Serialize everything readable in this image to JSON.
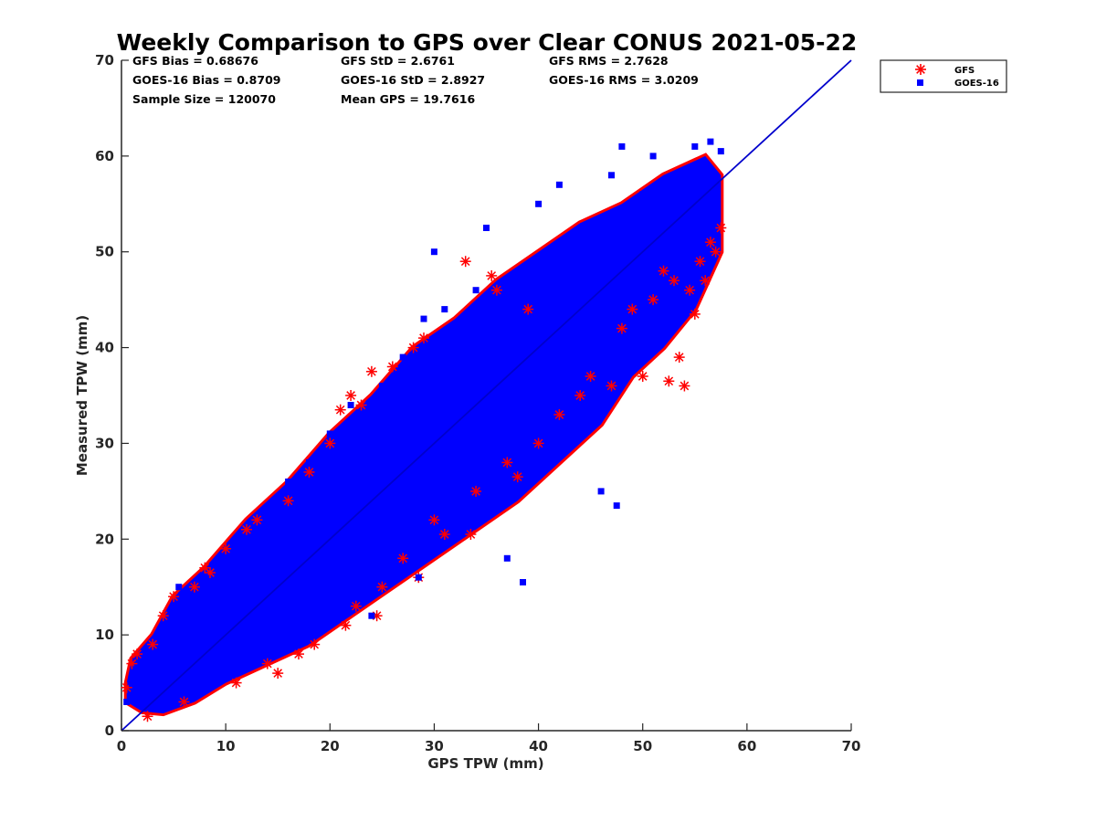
{
  "chart_data": {
    "type": "scatter",
    "title": "Weekly Comparison to GPS over Clear CONUS 2021-05-22",
    "xlabel": "GPS TPW (mm)",
    "ylabel": "Measured TPW (mm)",
    "xlim": [
      0,
      70
    ],
    "ylim": [
      0,
      70
    ],
    "xticks": [
      "0",
      "10",
      "20",
      "30",
      "40",
      "50",
      "60",
      "70"
    ],
    "yticks": [
      "0",
      "10",
      "20",
      "30",
      "40",
      "50",
      "60",
      "70"
    ],
    "legend_position": "outside top-right",
    "stats": {
      "gfs_bias": "GFS Bias = 0.68676",
      "goes_bias": "GOES-16 Bias = 0.8709",
      "sample_size": "Sample Size = 120070",
      "gfs_std": "GFS StD = 2.6761",
      "goes_std": "GOES-16 StD = 2.8927",
      "mean_gps": "Mean GPS = 19.7616",
      "gfs_rms": "GFS RMS = 2.7628",
      "goes_rms": "GOES-16 RMS = 3.0209"
    },
    "reference_line": {
      "name": "1:1 line",
      "x": [
        0,
        70
      ],
      "y": [
        0,
        70
      ],
      "color": "#0000cc"
    },
    "series": [
      {
        "name": "GFS",
        "marker": "asterisk",
        "color": "#ff0000",
        "points": [
          [
            0.5,
            4.5
          ],
          [
            1,
            7
          ],
          [
            1.5,
            8
          ],
          [
            2.5,
            1.5
          ],
          [
            3,
            9
          ],
          [
            4,
            12
          ],
          [
            5,
            14
          ],
          [
            6,
            3
          ],
          [
            7,
            15
          ],
          [
            8,
            17
          ],
          [
            8.5,
            16.5
          ],
          [
            10,
            19
          ],
          [
            11,
            5
          ],
          [
            12,
            21
          ],
          [
            13,
            22
          ],
          [
            14,
            7
          ],
          [
            15,
            6
          ],
          [
            16,
            24
          ],
          [
            17,
            8
          ],
          [
            18,
            27
          ],
          [
            18.5,
            9
          ],
          [
            20,
            30
          ],
          [
            21,
            33.5
          ],
          [
            21.5,
            11
          ],
          [
            22,
            35
          ],
          [
            22.5,
            13
          ],
          [
            23,
            34
          ],
          [
            24,
            37.5
          ],
          [
            24.5,
            12
          ],
          [
            25,
            15
          ],
          [
            26,
            38
          ],
          [
            27,
            18
          ],
          [
            28,
            40
          ],
          [
            28.5,
            16
          ],
          [
            29,
            41
          ],
          [
            30,
            22
          ],
          [
            31,
            20.5
          ],
          [
            33,
            49
          ],
          [
            33.5,
            20.5
          ],
          [
            34,
            25
          ],
          [
            35.5,
            47.5
          ],
          [
            36,
            46
          ],
          [
            37,
            28
          ],
          [
            38,
            26.5
          ],
          [
            39,
            44
          ],
          [
            40,
            30
          ],
          [
            42,
            33
          ],
          [
            44,
            35
          ],
          [
            45,
            37
          ],
          [
            47,
            36
          ],
          [
            48,
            42
          ],
          [
            49,
            44
          ],
          [
            50,
            37
          ],
          [
            51,
            45
          ],
          [
            52,
            48
          ],
          [
            52.5,
            36.5
          ],
          [
            53,
            47
          ],
          [
            53.5,
            39
          ],
          [
            54,
            36
          ],
          [
            54.5,
            46
          ],
          [
            55,
            43.5
          ],
          [
            55.5,
            49
          ],
          [
            56,
            47
          ],
          [
            56.5,
            51
          ],
          [
            57,
            50
          ],
          [
            57.5,
            52.5
          ]
        ]
      },
      {
        "name": "GOES-16",
        "marker": "square",
        "color": "#0000ff",
        "points": [
          [
            0.5,
            3
          ],
          [
            1,
            5
          ],
          [
            1.5,
            6.5
          ],
          [
            2,
            4
          ],
          [
            3,
            8
          ],
          [
            3.5,
            2.5
          ],
          [
            4,
            10
          ],
          [
            5,
            11
          ],
          [
            5.5,
            15
          ],
          [
            6,
            7
          ],
          [
            7,
            13
          ],
          [
            8,
            16
          ],
          [
            9,
            9
          ],
          [
            10,
            18
          ],
          [
            11,
            14
          ],
          [
            12,
            20
          ],
          [
            13,
            11
          ],
          [
            14,
            22
          ],
          [
            15,
            17
          ],
          [
            16,
            26
          ],
          [
            17,
            13
          ],
          [
            18,
            28
          ],
          [
            19,
            22
          ],
          [
            20,
            31
          ],
          [
            21,
            18
          ],
          [
            22,
            34
          ],
          [
            23,
            26
          ],
          [
            24,
            12
          ],
          [
            25,
            36
          ],
          [
            26,
            29
          ],
          [
            27,
            39
          ],
          [
            28,
            33
          ],
          [
            28.5,
            16
          ],
          [
            29,
            43
          ],
          [
            30,
            50
          ],
          [
            31,
            44
          ],
          [
            32,
            35
          ],
          [
            33,
            28
          ],
          [
            34,
            46
          ],
          [
            35,
            52.5
          ],
          [
            36,
            40
          ],
          [
            37,
            18
          ],
          [
            38,
            33
          ],
          [
            38.5,
            15.5
          ],
          [
            39,
            47
          ],
          [
            40,
            55
          ],
          [
            41,
            42
          ],
          [
            42,
            57
          ],
          [
            43,
            48
          ],
          [
            44,
            36
          ],
          [
            45,
            52
          ],
          [
            46,
            25
          ],
          [
            47,
            58
          ],
          [
            47.5,
            23.5
          ],
          [
            48,
            61
          ],
          [
            49,
            51
          ],
          [
            50,
            56
          ],
          [
            51,
            60
          ],
          [
            52,
            45
          ],
          [
            53,
            58
          ],
          [
            54,
            54
          ],
          [
            55,
            61
          ],
          [
            56,
            59
          ],
          [
            56.5,
            61.5
          ],
          [
            57,
            57
          ],
          [
            57.5,
            60.5
          ]
        ]
      }
    ]
  }
}
